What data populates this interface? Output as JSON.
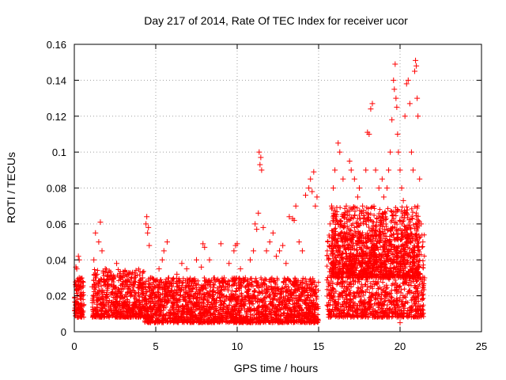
{
  "chart_data": {
    "type": "scatter",
    "title": "Day 217 of 2014, Rate Of TEC Index for receiver ucor",
    "xlabel": "GPS time / hours",
    "ylabel": "ROTI / TECUs",
    "xlim": [
      0,
      25
    ],
    "ylim": [
      0,
      0.16
    ],
    "x_ticks": [
      0,
      5,
      10,
      15,
      20,
      25
    ],
    "x_tick_labels": [
      "0",
      "5",
      "10",
      "15",
      "20",
      "25"
    ],
    "y_ticks": [
      0,
      0.02,
      0.04,
      0.06,
      0.08,
      0.1,
      0.12,
      0.14,
      0.16
    ],
    "y_tick_labels": [
      "0",
      "0.02",
      "0.04",
      "0.06",
      "0.08",
      "0.1",
      "0.12",
      "0.14",
      "0.16"
    ],
    "grid": true,
    "marker": "plus",
    "color": "#ff0000",
    "series": [
      {
        "points": [
          [
            0.05,
            0.012
          ],
          [
            0.1,
            0.025
          ],
          [
            0.15,
            0.035
          ],
          [
            0.2,
            0.018
          ],
          [
            0.25,
            0.042
          ],
          [
            0.3,
            0.03
          ],
          [
            0.35,
            0.015
          ],
          [
            0.4,
            0.022
          ],
          [
            0.45,
            0.01
          ],
          [
            0.5,
            0.028
          ],
          [
            0.3,
            0.04
          ],
          [
            0.1,
            0.036
          ],
          [
            1.1,
            0.025
          ],
          [
            1.2,
            0.04
          ],
          [
            1.3,
            0.055
          ],
          [
            1.4,
            0.032
          ],
          [
            1.5,
            0.05
          ],
          [
            1.6,
            0.061
          ],
          [
            1.7,
            0.045
          ],
          [
            1.8,
            0.028
          ],
          [
            1.9,
            0.035
          ],
          [
            2.0,
            0.022
          ],
          [
            2.2,
            0.03
          ],
          [
            2.4,
            0.025
          ],
          [
            2.6,
            0.038
          ],
          [
            2.8,
            0.02
          ],
          [
            3.0,
            0.028
          ],
          [
            3.2,
            0.015
          ],
          [
            3.5,
            0.022
          ],
          [
            3.8,
            0.018
          ],
          [
            4.0,
            0.025
          ],
          [
            4.2,
            0.03
          ],
          [
            4.4,
            0.06
          ],
          [
            4.45,
            0.064
          ],
          [
            4.5,
            0.055
          ],
          [
            4.55,
            0.058
          ],
          [
            4.6,
            0.048
          ],
          [
            4.7,
            0.03
          ],
          [
            4.8,
            0.022
          ],
          [
            5.0,
            0.028
          ],
          [
            5.2,
            0.035
          ],
          [
            5.4,
            0.04
          ],
          [
            5.5,
            0.045
          ],
          [
            5.7,
            0.05
          ],
          [
            5.8,
            0.03
          ],
          [
            6.0,
            0.025
          ],
          [
            6.3,
            0.032
          ],
          [
            6.6,
            0.038
          ],
          [
            6.9,
            0.035
          ],
          [
            7.2,
            0.028
          ],
          [
            7.5,
            0.04
          ],
          [
            7.8,
            0.036
          ],
          [
            7.9,
            0.049
          ],
          [
            8.0,
            0.047
          ],
          [
            8.3,
            0.04
          ],
          [
            8.6,
            0.03
          ],
          [
            8.9,
            0.028
          ],
          [
            9.0,
            0.049
          ],
          [
            9.2,
            0.03
          ],
          [
            9.5,
            0.038
          ],
          [
            9.8,
            0.045
          ],
          [
            9.9,
            0.048
          ],
          [
            10.0,
            0.049
          ],
          [
            10.2,
            0.035
          ],
          [
            10.5,
            0.03
          ],
          [
            10.8,
            0.04
          ],
          [
            11.0,
            0.045
          ],
          [
            11.1,
            0.06
          ],
          [
            11.2,
            0.057
          ],
          [
            11.3,
            0.066
          ],
          [
            11.35,
            0.1
          ],
          [
            11.4,
            0.093
          ],
          [
            11.45,
            0.097
          ],
          [
            11.5,
            0.09
          ],
          [
            11.6,
            0.058
          ],
          [
            11.8,
            0.045
          ],
          [
            12.0,
            0.05
          ],
          [
            12.2,
            0.055
          ],
          [
            12.4,
            0.042
          ],
          [
            12.6,
            0.045
          ],
          [
            12.8,
            0.048
          ],
          [
            13.0,
            0.038
          ],
          [
            13.2,
            0.064
          ],
          [
            13.4,
            0.063
          ],
          [
            13.5,
            0.062
          ],
          [
            13.6,
            0.07
          ],
          [
            13.8,
            0.05
          ],
          [
            14.0,
            0.045
          ],
          [
            14.2,
            0.076
          ],
          [
            14.4,
            0.08
          ],
          [
            14.5,
            0.085
          ],
          [
            14.6,
            0.078
          ],
          [
            14.7,
            0.089
          ],
          [
            14.8,
            0.07
          ],
          [
            14.9,
            0.075
          ],
          [
            15.6,
            0.04
          ],
          [
            15.7,
            0.06
          ],
          [
            15.8,
            0.07
          ],
          [
            15.9,
            0.08
          ],
          [
            16.0,
            0.09
          ],
          [
            16.2,
            0.105
          ],
          [
            16.3,
            0.1
          ],
          [
            16.5,
            0.085
          ],
          [
            16.7,
            0.07
          ],
          [
            16.9,
            0.095
          ],
          [
            17.0,
            0.09
          ],
          [
            17.2,
            0.085
          ],
          [
            17.4,
            0.075
          ],
          [
            17.5,
            0.08
          ],
          [
            17.7,
            0.07
          ],
          [
            17.9,
            0.09
          ],
          [
            18.0,
            0.111
          ],
          [
            18.1,
            0.11
          ],
          [
            18.2,
            0.124
          ],
          [
            18.3,
            0.127
          ],
          [
            18.5,
            0.09
          ],
          [
            18.7,
            0.08
          ],
          [
            18.9,
            0.085
          ],
          [
            19.0,
            0.075
          ],
          [
            19.2,
            0.08
          ],
          [
            19.3,
            0.09
          ],
          [
            19.4,
            0.1
          ],
          [
            19.5,
            0.118
          ],
          [
            19.6,
            0.14
          ],
          [
            19.65,
            0.135
          ],
          [
            19.7,
            0.149
          ],
          [
            19.75,
            0.13
          ],
          [
            19.8,
            0.125
          ],
          [
            19.85,
            0.11
          ],
          [
            19.9,
            0.1
          ],
          [
            20.0,
            0.09
          ],
          [
            20.1,
            0.08
          ],
          [
            20.2,
            0.073
          ],
          [
            20.3,
            0.12
          ],
          [
            20.4,
            0.138
          ],
          [
            20.5,
            0.14
          ],
          [
            20.6,
            0.127
          ],
          [
            20.7,
            0.1
          ],
          [
            20.8,
            0.09
          ],
          [
            20.9,
            0.145
          ],
          [
            20.95,
            0.151
          ],
          [
            21.0,
            0.148
          ],
          [
            21.05,
            0.13
          ],
          [
            21.1,
            0.12
          ],
          [
            21.2,
            0.085
          ],
          [
            21.3,
            0.06
          ],
          [
            21.4,
            0.05
          ],
          [
            21.5,
            0.03
          ],
          [
            20.0,
            0.005
          ],
          [
            19.0,
            0.01
          ],
          [
            18.0,
            0.012
          ],
          [
            16.0,
            0.015
          ]
        ]
      }
    ]
  }
}
